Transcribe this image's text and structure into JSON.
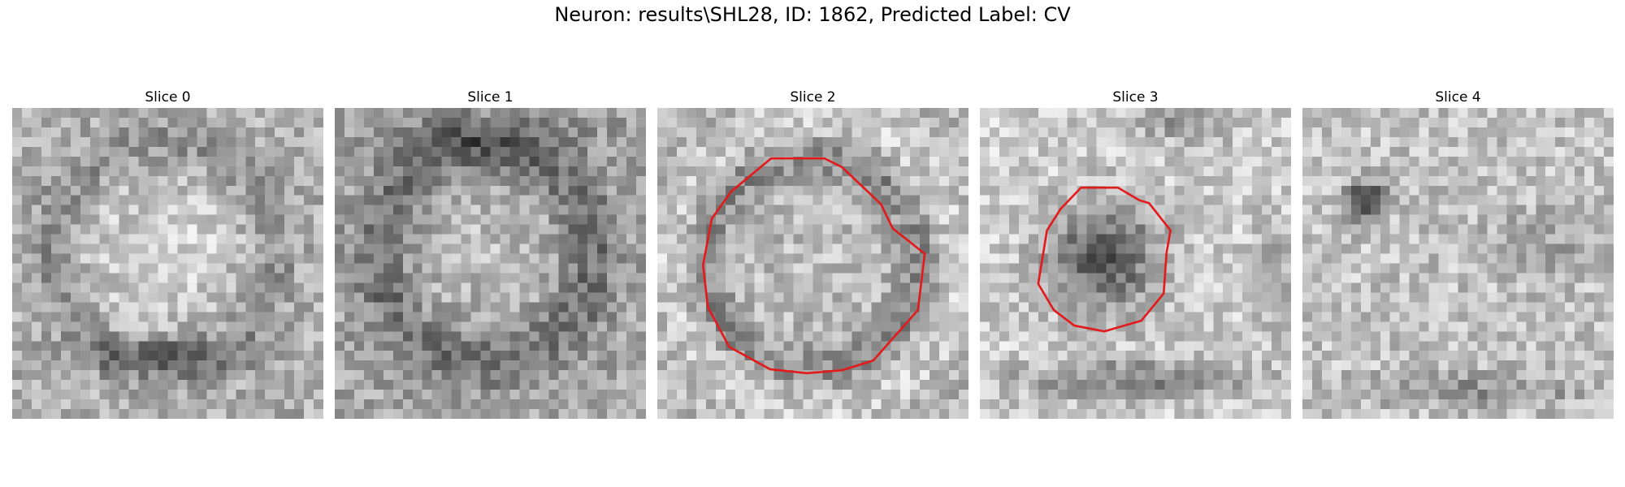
{
  "figure": {
    "title": "Neuron: results\\SHL28, ID: 1862, Predicted Label: CV"
  },
  "slices": [
    {
      "label": "Slice 0",
      "has_contour": false
    },
    {
      "label": "Slice 1",
      "has_contour": false
    },
    {
      "label": "Slice 2",
      "has_contour": true
    },
    {
      "label": "Slice 3",
      "has_contour": true
    },
    {
      "label": "Slice 4",
      "has_contour": false
    }
  ],
  "colors": {
    "contour": "#e31a1c",
    "background": "#ffffff"
  }
}
